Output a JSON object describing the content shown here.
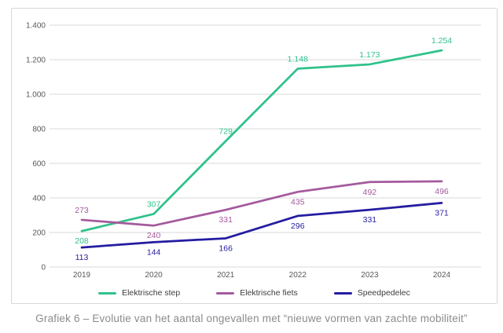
{
  "caption": "Grafiek 6 – Evolutie van het aantal ongevallen met “nieuwe vormen van zachte mobiliteit”",
  "chart_data": {
    "type": "line",
    "title": "",
    "xlabel": "",
    "ylabel": "",
    "categories": [
      "2019",
      "2020",
      "2021",
      "2022",
      "2023",
      "2024"
    ],
    "series": [
      {
        "name": "Elektrische step",
        "color": "#2fc28b",
        "values": [
          208,
          307,
          729,
          1148,
          1173,
          1254
        ],
        "labels": [
          "208",
          "307",
          "729",
          "1.148",
          "1.173",
          "1.254"
        ],
        "label_positions": [
          "below",
          "above",
          "above",
          "above",
          "above",
          "above"
        ]
      },
      {
        "name": "Elektrische fiets",
        "color": "#a45a9d",
        "values": [
          273,
          240,
          331,
          435,
          492,
          496
        ],
        "labels": [
          "273",
          "240",
          "331",
          "435",
          "492",
          "496"
        ],
        "label_positions": [
          "above",
          "below",
          "below",
          "below",
          "below",
          "below"
        ]
      },
      {
        "name": "Speedpedelec",
        "color": "#241ca0",
        "values": [
          113,
          144,
          166,
          296,
          331,
          371
        ],
        "labels": [
          "113",
          "144",
          "166",
          "296",
          "331",
          "371"
        ],
        "label_positions": [
          "below",
          "below",
          "below",
          "below",
          "below",
          "below"
        ]
      }
    ],
    "yticks": [
      {
        "label": "1.400",
        "value": 1400
      },
      {
        "label": "1.200",
        "value": 1200
      },
      {
        "label": "1.000",
        "value": 1000
      },
      {
        "label": "800",
        "value": 800
      },
      {
        "label": "600",
        "value": 600
      },
      {
        "label": "400",
        "value": 400
      },
      {
        "label": "200",
        "value": 200
      },
      {
        "label": "0",
        "value": 0
      }
    ],
    "ylim": [
      0,
      1400
    ],
    "grid": true,
    "legend_position": "bottom",
    "colors": {
      "grid": "#d9d9d9",
      "tick_text": "#595959",
      "legend_text": "#3c3c3c",
      "caption_text": "#8b8b8b",
      "panel_border": "#d8d8d8"
    }
  }
}
